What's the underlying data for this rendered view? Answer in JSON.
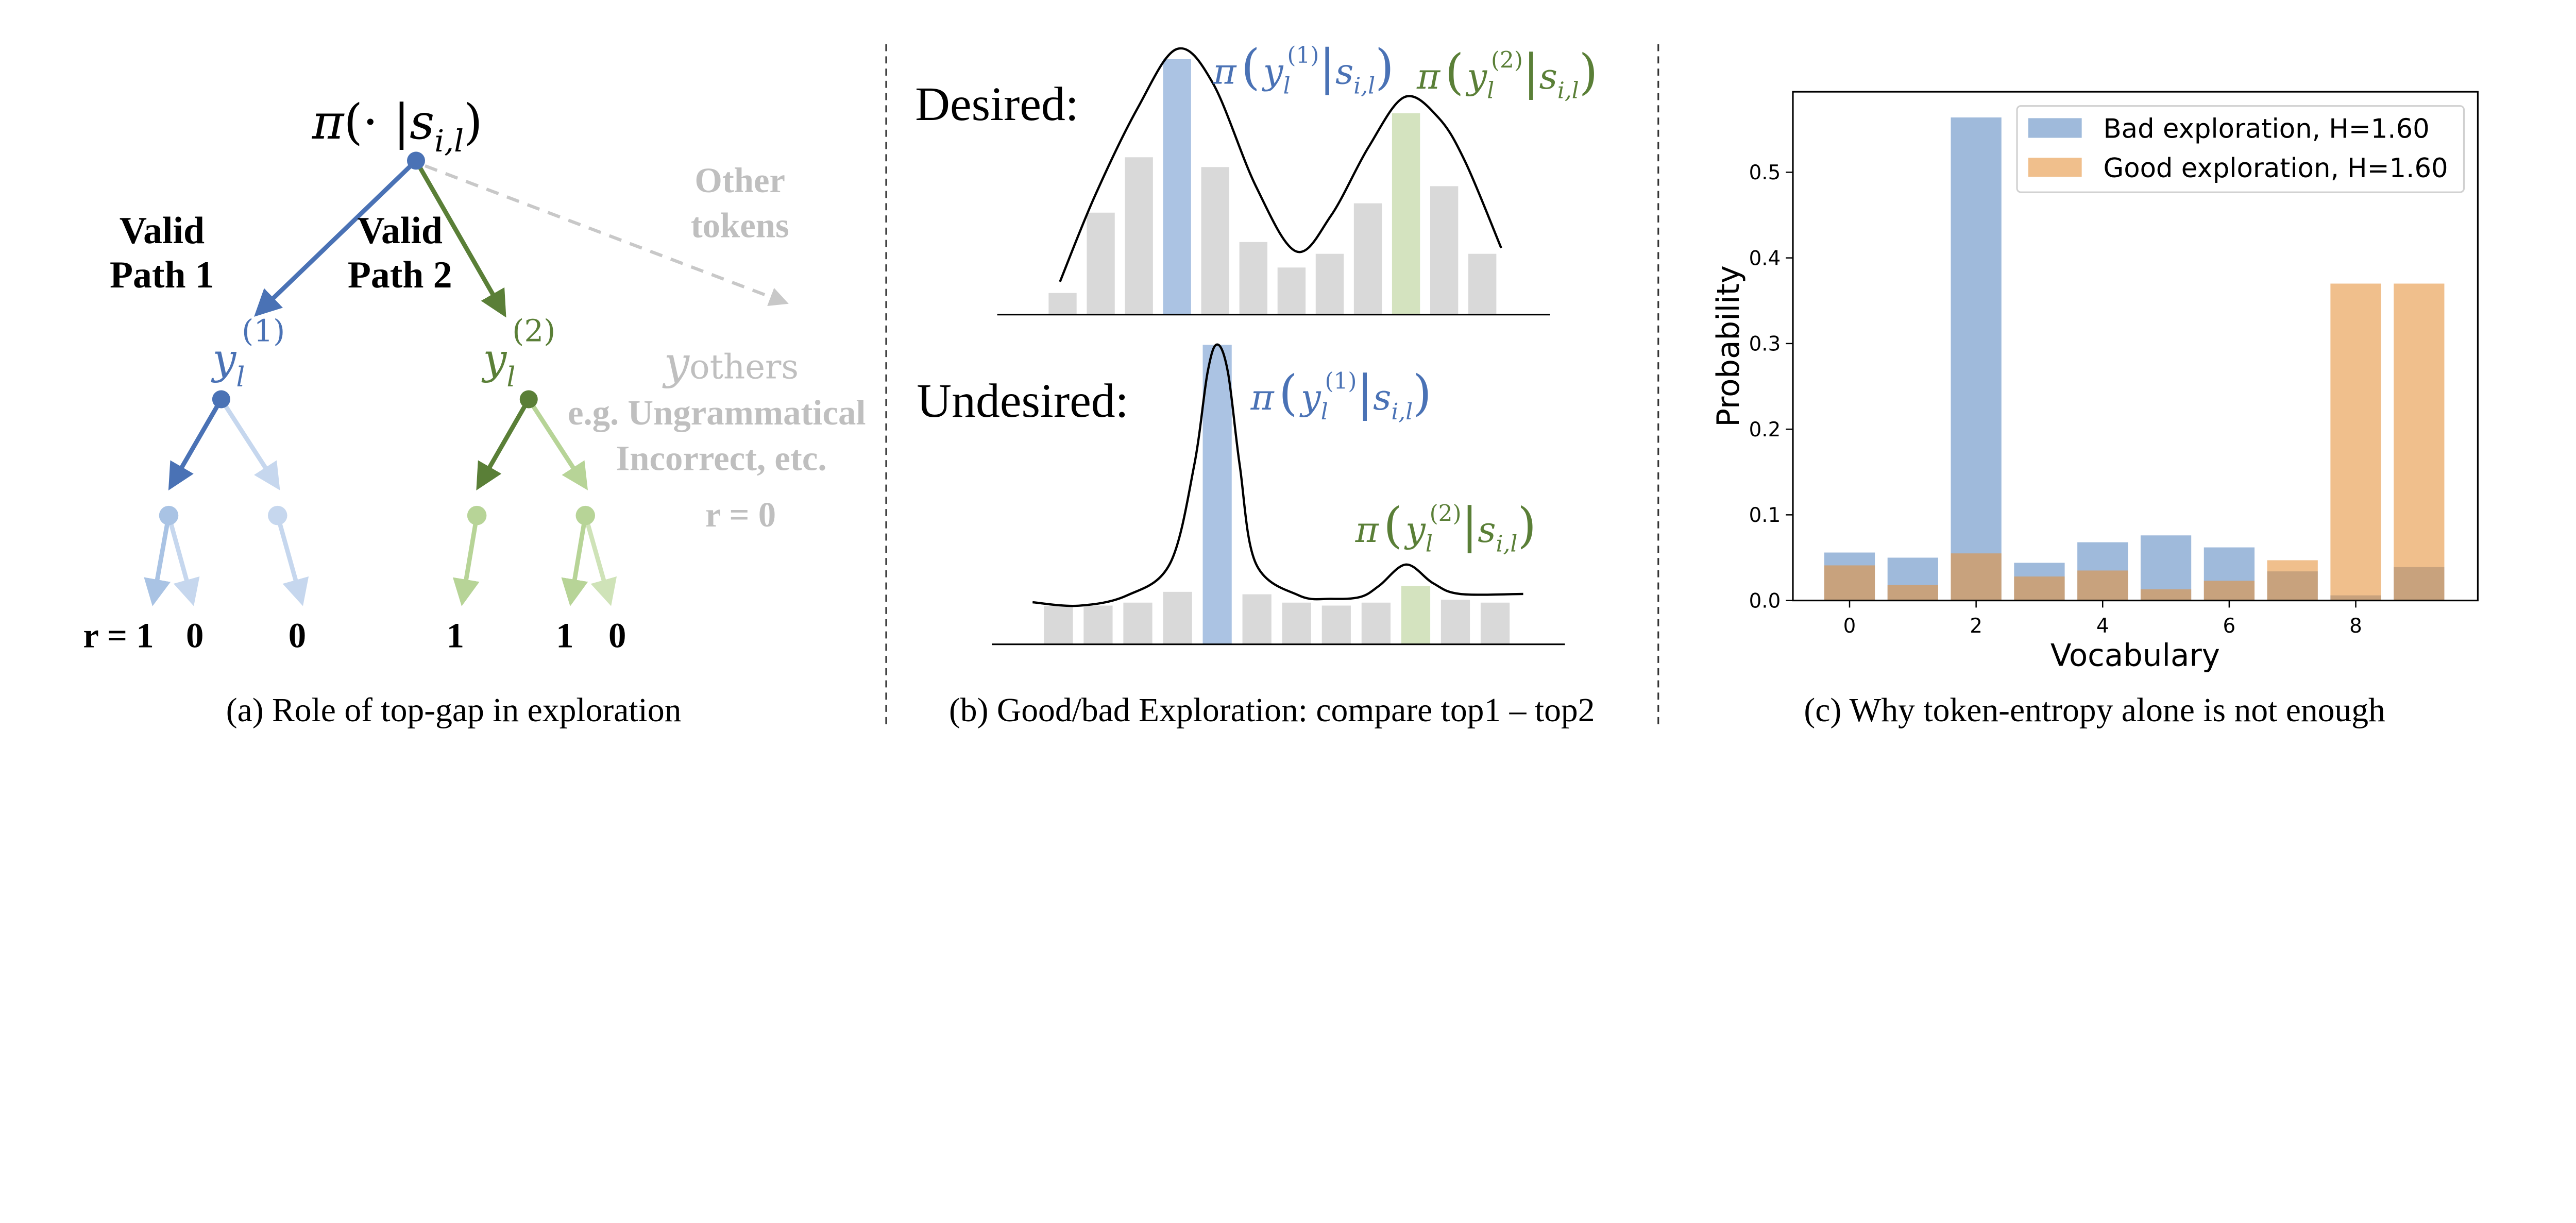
{
  "colors": {
    "blue": "#4a72b5",
    "green": "#5a7f37",
    "light_blue": "#a9c3e4",
    "lighter_blue": "#c6d7ee",
    "light_green": "#b7d497",
    "lighter_green": "#cfe3b8",
    "gray_text": "#bfbfbf",
    "gray_bar": "#d9d9d9",
    "blue_bar": "#abc3e3",
    "green_bar": "#d4e3bf"
  },
  "panel_a": {
    "root_label": {
      "pi": "π",
      "open": "(· |",
      "s": "s",
      "s_sub": "i,l",
      "close": ")"
    },
    "valid_path_1": [
      "Valid",
      "Path 1"
    ],
    "valid_path_2": [
      "Valid",
      "Path 2"
    ],
    "other_tokens": [
      "Other",
      "tokens"
    ],
    "y1": {
      "y": "y",
      "sub": "l",
      "sup": "(1)"
    },
    "y2": {
      "y": "y",
      "sub": "l",
      "sup": "(2)"
    },
    "y_others": {
      "y": "y",
      "sub": "others"
    },
    "others_desc": [
      "e.g. Ungrammatical",
      "Incorrect, etc."
    ],
    "others_reward": "r = 0",
    "rewards": [
      "r = 1",
      "0",
      "0",
      "1",
      "1",
      "0"
    ],
    "caption": "(a) Role of top-gap in exploration"
  },
  "panel_b": {
    "desired_label": "Desired:",
    "undesired_label": "Undesired:",
    "pi_top1": {
      "pi": "π",
      "y": "y",
      "sub": "l",
      "sup": "(1)",
      "s": "s",
      "s_sub": "i,l"
    },
    "pi_top2": {
      "pi": "π",
      "y": "y",
      "sub": "l",
      "sup": "(2)",
      "s": "s",
      "s_sub": "i,l"
    },
    "desired_bars": [
      44,
      208,
      321,
      521,
      301,
      148,
      96,
      124,
      227,
      411,
      262,
      124
    ],
    "desired_top1_index": 3,
    "desired_top2_index": 9,
    "undesired_bars": [
      78,
      79,
      85,
      107,
      611,
      102,
      85,
      79,
      85,
      119,
      91,
      85
    ],
    "undesired_top1_index": 4,
    "undesired_top2_index": 9,
    "caption": "(b) Good/bad Exploration: compare top1 – top2"
  },
  "chart_data": {
    "type": "bar",
    "title": "",
    "xlabel": "Vocabulary",
    "ylabel": "Probability",
    "x": [
      0,
      1,
      2,
      3,
      4,
      5,
      6,
      7,
      8,
      9
    ],
    "xticks": [
      "0",
      "2",
      "4",
      "6",
      "8"
    ],
    "xtick_values": [
      0,
      2,
      4,
      6,
      8
    ],
    "yticks": [
      "0.0",
      "0.1",
      "0.2",
      "0.3",
      "0.4",
      "0.5"
    ],
    "ytick_values": [
      0,
      0.1,
      0.2,
      0.3,
      0.4,
      0.5
    ],
    "xlim": [
      -0.9,
      9.6
    ],
    "ylim": [
      0,
      0.593
    ],
    "grid": false,
    "legend_position": "top-right",
    "series": [
      {
        "name": "Bad exploration, H=1.60",
        "color": "#4a7dbb",
        "values": [
          0.056,
          0.05,
          0.564,
          0.044,
          0.068,
          0.076,
          0.062,
          0.034,
          0.006,
          0.039
        ]
      },
      {
        "name": "Good exploration, H=1.60",
        "color": "#e69138",
        "values": [
          0.041,
          0.018,
          0.055,
          0.028,
          0.035,
          0.013,
          0.023,
          0.047,
          0.37,
          0.37
        ]
      }
    ],
    "caption": "(c) Why token-entropy alone is not enough"
  }
}
